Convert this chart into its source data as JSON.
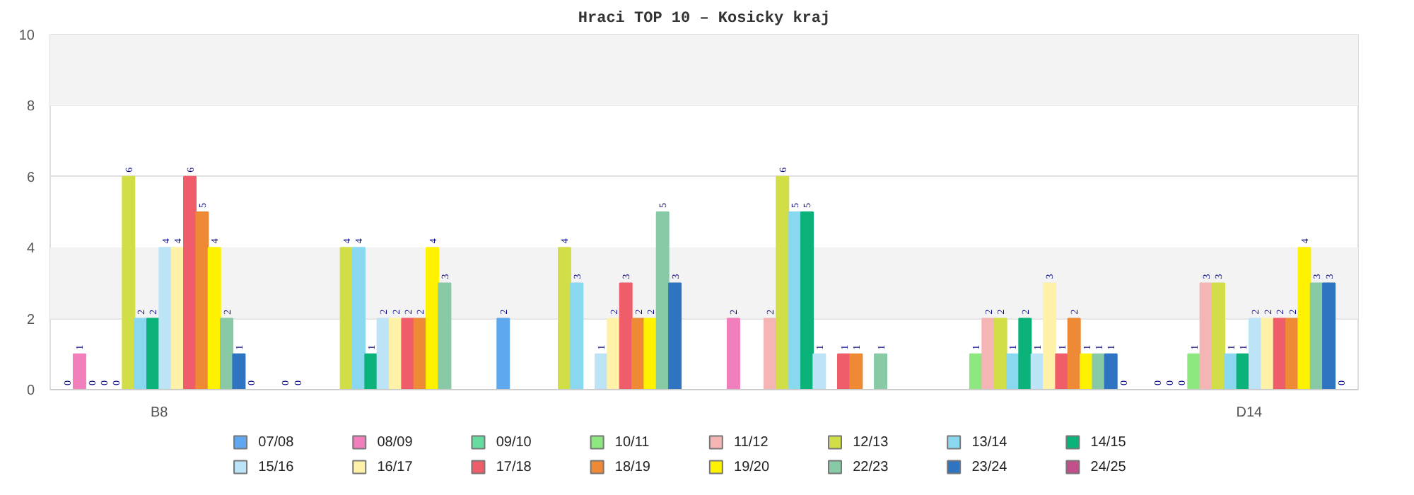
{
  "chart_data": {
    "type": "bar",
    "title": "Hraci TOP 10 – Kosicky kraj",
    "categories": [
      "B8",
      null,
      null,
      null,
      null,
      "D14"
    ],
    "ylim": [
      0,
      10
    ],
    "yticks": [
      0,
      2,
      4,
      6,
      8,
      10
    ],
    "grid": "y",
    "legend": "bottom",
    "data_labels": true,
    "bands": [
      {
        "axis": "y",
        "from": 2,
        "to": 4,
        "color": "#f3f3f3"
      },
      {
        "axis": "y",
        "from": 8,
        "to": 10,
        "color": "#f3f3f3"
      }
    ],
    "series": [
      {
        "name": "07/08",
        "color": "#5fa8ef",
        "values": [
          0,
          0,
          2,
          null,
          null,
          0
        ]
      },
      {
        "name": "08/09",
        "color": "#f07fbb",
        "values": [
          1,
          0,
          null,
          2,
          null,
          0
        ]
      },
      {
        "name": "09/10",
        "color": "#66dd9f",
        "values": [
          0,
          null,
          null,
          null,
          null,
          0
        ]
      },
      {
        "name": "10/11",
        "color": "#8de87f",
        "values": [
          0,
          null,
          null,
          null,
          1,
          1
        ]
      },
      {
        "name": "11/12",
        "color": "#f5b5b5",
        "values": [
          0,
          null,
          null,
          2,
          2,
          3
        ]
      },
      {
        "name": "12/13",
        "color": "#d1de48",
        "values": [
          6,
          4,
          4,
          6,
          2,
          3
        ]
      },
      {
        "name": "13/14",
        "color": "#8ad8f0",
        "values": [
          2,
          4,
          3,
          5,
          1,
          1
        ]
      },
      {
        "name": "14/15",
        "color": "#0bb27a",
        "values": [
          2,
          1,
          null,
          5,
          2,
          1
        ]
      },
      {
        "name": "15/16",
        "color": "#bde3f7",
        "values": [
          4,
          2,
          1,
          1,
          1,
          2
        ]
      },
      {
        "name": "16/17",
        "color": "#fff2a8",
        "values": [
          4,
          2,
          2,
          null,
          3,
          2
        ]
      },
      {
        "name": "17/18",
        "color": "#ef5d6a",
        "values": [
          6,
          2,
          3,
          1,
          1,
          2
        ]
      },
      {
        "name": "18/19",
        "color": "#ee8a35",
        "values": [
          5,
          2,
          2,
          1,
          2,
          2
        ]
      },
      {
        "name": "19/20",
        "color": "#fff200",
        "values": [
          4,
          4,
          2,
          null,
          1,
          4
        ]
      },
      {
        "name": "22/23",
        "color": "#88c9a6",
        "values": [
          2,
          3,
          5,
          1,
          1,
          3
        ]
      },
      {
        "name": "23/24",
        "color": "#2f74c0",
        "values": [
          1,
          null,
          3,
          null,
          1,
          3
        ]
      },
      {
        "name": "24/25",
        "color": "#c0508a",
        "values": [
          0,
          null,
          null,
          null,
          0,
          0
        ]
      }
    ]
  }
}
